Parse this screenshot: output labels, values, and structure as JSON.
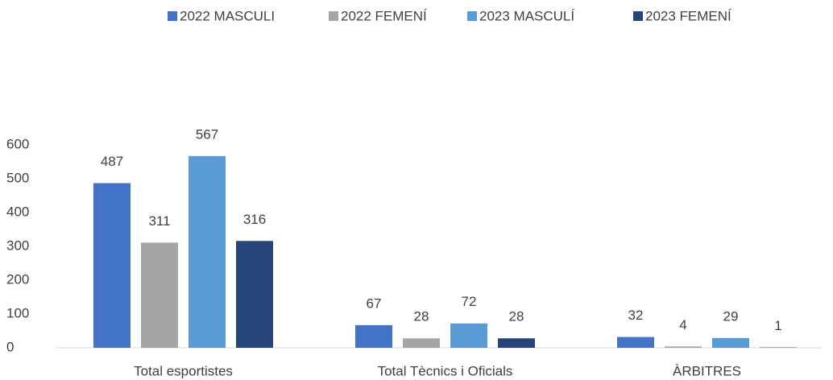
{
  "chart_data": {
    "type": "bar",
    "categories": [
      "Total esportistes",
      "Total Tècnics i Oficials",
      "ÀRBITRES"
    ],
    "series": [
      {
        "name": "2022 MASCULI",
        "color": "#4472c4",
        "values": [
          487,
          67,
          32
        ]
      },
      {
        "name": "2022 FEMENÍ",
        "color": "#a5a5a5",
        "values": [
          311,
          28,
          4
        ]
      },
      {
        "name": "2023 MASCULÍ",
        "color": "#5b9bd5",
        "values": [
          567,
          72,
          29
        ]
      },
      {
        "name": "2023 FEMENÍ",
        "color": "#264478",
        "values": [
          316,
          28,
          1
        ]
      }
    ],
    "ylim": [
      0,
      600
    ],
    "yticks": [
      0,
      100,
      200,
      300,
      400,
      500,
      600
    ],
    "grid": false,
    "legend": "top"
  }
}
